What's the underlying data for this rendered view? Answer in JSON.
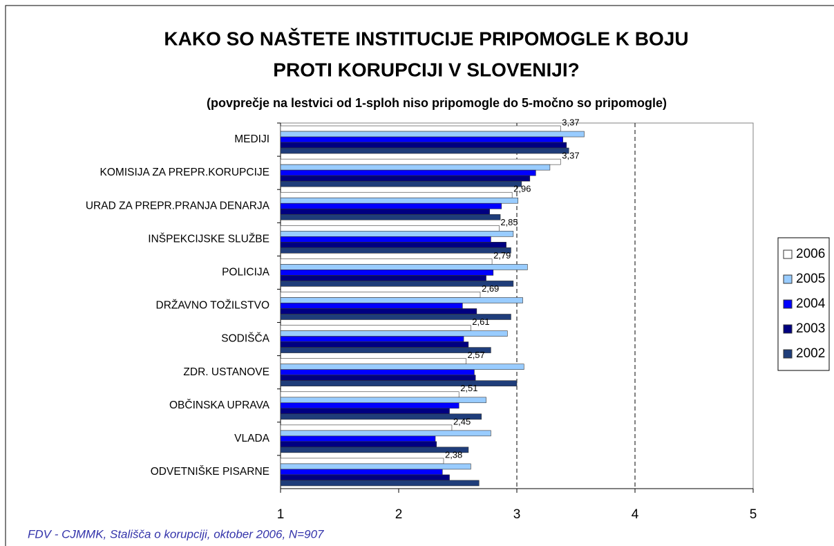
{
  "chart_data": {
    "type": "hbar",
    "title": [
      "KAKO SO NAŠTETE INSTITUCIJE PRIPOMOGLE K BOJU",
      "PROTI KORUPCIJI V SLOVENIJI?"
    ],
    "subtitle": "(povprečje na lestvici od 1-sploh niso pripomogle do 5-močno so pripomogle)",
    "footnote": "FDV - CJMMK, Stališča o korupciji, oktober 2006, N=907",
    "categories": [
      "MEDIJI",
      "KOMISIJA ZA PREPR.KORUPCIJE",
      "URAD ZA PREPR.PRANJA DENARJA",
      "INŠPEKCIJSKE SLUŽBE",
      "POLICIJA",
      "DRŽAVNO TOŽILSTVO",
      "SODIŠČA",
      "ZDR. USTANOVE",
      "OBČINSKA UPRAVA",
      "VLADA",
      "ODVETNIŠKE PISARNE"
    ],
    "series": [
      {
        "name": "2006",
        "color": "#ffffff",
        "values": [
          3.37,
          3.37,
          2.96,
          2.85,
          2.79,
          2.69,
          2.61,
          2.57,
          2.51,
          2.45,
          2.38
        ],
        "value_labels": [
          "3,37",
          "3,37",
          "2,96",
          "2,85",
          "2,79",
          "2,69",
          "2,61",
          "2,57",
          "2,51",
          "2,45",
          "2,38"
        ]
      },
      {
        "name": "2005",
        "color": "#99ccff",
        "values": [
          3.57,
          3.28,
          3.01,
          2.97,
          3.09,
          3.05,
          2.92,
          3.06,
          2.74,
          2.78,
          2.61
        ]
      },
      {
        "name": "2004",
        "color": "#0000ff",
        "values": [
          3.39,
          3.16,
          2.87,
          2.78,
          2.8,
          2.54,
          2.55,
          2.64,
          2.51,
          2.31,
          2.37
        ]
      },
      {
        "name": "2003",
        "color": "#000080",
        "values": [
          3.42,
          3.11,
          2.77,
          2.91,
          2.74,
          2.66,
          2.59,
          2.65,
          2.43,
          2.32,
          2.43
        ]
      },
      {
        "name": "2002",
        "color": "#1f3d7a",
        "values": [
          3.44,
          3.04,
          2.86,
          2.95,
          2.97,
          2.95,
          2.78,
          3.0,
          2.7,
          2.59,
          2.68
        ]
      }
    ],
    "xlim": [
      1,
      5
    ],
    "xticks": [
      1,
      2,
      3,
      4,
      5
    ],
    "grid_lines": [
      3,
      4
    ],
    "legend": "right"
  }
}
